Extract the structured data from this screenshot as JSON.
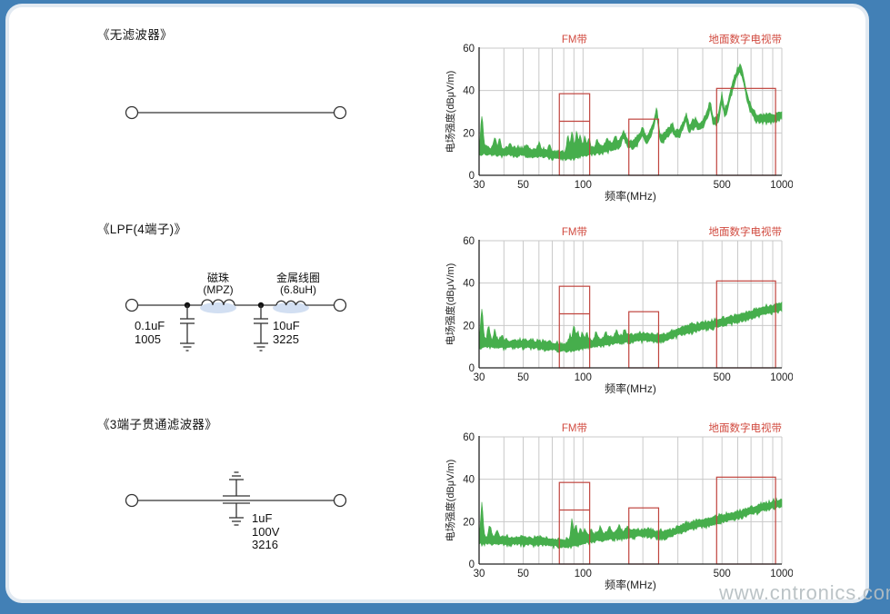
{
  "page": {
    "frame_color": "#4280b6",
    "card_color": "#ffffff",
    "watermark": "www.cntronics.com"
  },
  "sections": [
    {
      "title": "《无滤波器》",
      "circuit_type": "plain-wire",
      "labels": {}
    },
    {
      "title": "《LPF(4端子)》",
      "circuit_type": "lpf-4-terminal",
      "labels": {
        "bead_name": "磁珠",
        "bead_part": "(MPZ)",
        "coil_name": "金属线圈",
        "coil_part": "(6.8uH)",
        "cap1_value": "0.1uF",
        "cap1_size": "1005",
        "cap2_value": "10uF",
        "cap2_size": "3225"
      }
    },
    {
      "title": "《3端子贯通滤波器》",
      "circuit_type": "3-terminal-feedthrough",
      "labels": {
        "cap_value": "1uF",
        "cap_voltage": "100V",
        "cap_size": "3216"
      }
    }
  ],
  "chart_style": {
    "trace_color": "#46ae4c",
    "band_box_color": "#c0443e",
    "band_label_color": "#d14a3f",
    "grid_color": "#c9c9c9",
    "axis_color": "#222222",
    "text_color": "#222222"
  },
  "chart_data": [
    {
      "type": "area",
      "name": "no-filter-spectrum",
      "xlabel": "频率(MHz)",
      "ylabel": "电场强度(dBμV/m)",
      "xscale": "log",
      "xlim": [
        30,
        1000
      ],
      "ylim": [
        0,
        60
      ],
      "xticks": [
        30,
        50,
        100,
        500,
        1000
      ],
      "yticks": [
        0,
        20,
        40,
        60
      ],
      "grid_minor_x": [
        40,
        50,
        60,
        70,
        80,
        90,
        100,
        200,
        300,
        400,
        500,
        600,
        700,
        800,
        900,
        1000
      ],
      "grid_y": [
        20,
        40,
        60
      ],
      "band_label_left": "FM带",
      "band_label_right": "地面数字电视带",
      "bands": [
        {
          "name": "FM带",
          "f": [
            76,
            108
          ],
          "level_db": 38.5,
          "inner_level_db": 25.5
        },
        {
          "name": "",
          "f": [
            170,
            240
          ],
          "level_db": 26.5
        },
        {
          "name": "地面数字电视带",
          "f": [
            470,
            930
          ],
          "level_db": 41
        }
      ],
      "series_anchor_points": [
        [
          30,
          12
        ],
        [
          31.5,
          12.5
        ],
        [
          34,
          12
        ],
        [
          40,
          12
        ],
        [
          47,
          12
        ],
        [
          55,
          11.5
        ],
        [
          63,
          11.5
        ],
        [
          72,
          10.5
        ],
        [
          80,
          10
        ],
        [
          88,
          10.5
        ],
        [
          95,
          11
        ],
        [
          101,
          12
        ],
        [
          110,
          12.5
        ],
        [
          125,
          13
        ],
        [
          140,
          14.5
        ],
        [
          152,
          15.5
        ],
        [
          160,
          20.5
        ],
        [
          168,
          15.5
        ],
        [
          178,
          15.5
        ],
        [
          188,
          17
        ],
        [
          200,
          21.5
        ],
        [
          208,
          17.5
        ],
        [
          218,
          20
        ],
        [
          228,
          26
        ],
        [
          235,
          31.5
        ],
        [
          243,
          19
        ],
        [
          252,
          18.5
        ],
        [
          262,
          20
        ],
        [
          272,
          22
        ],
        [
          282,
          23.5
        ],
        [
          292,
          20
        ],
        [
          305,
          21
        ],
        [
          318,
          24
        ],
        [
          330,
          28.5
        ],
        [
          342,
          22.5
        ],
        [
          355,
          24.5
        ],
        [
          368,
          26
        ],
        [
          382,
          23.5
        ],
        [
          398,
          25
        ],
        [
          415,
          28
        ],
        [
          436,
          34
        ],
        [
          450,
          27
        ],
        [
          465,
          26
        ],
        [
          480,
          28
        ],
        [
          500,
          38
        ],
        [
          515,
          30
        ],
        [
          532,
          33
        ],
        [
          555,
          40
        ],
        [
          580,
          46
        ],
        [
          605,
          50.5
        ],
        [
          618,
          51
        ],
        [
          635,
          48.5
        ],
        [
          655,
          42
        ],
        [
          675,
          36
        ],
        [
          695,
          32.5
        ],
        [
          715,
          30.5
        ],
        [
          745,
          28
        ],
        [
          800,
          27.5
        ],
        [
          860,
          27.5
        ],
        [
          920,
          28
        ],
        [
          1000,
          29.5
        ]
      ],
      "spikes": [
        [
          31,
          15
        ],
        [
          36,
          5
        ],
        [
          38,
          4
        ],
        [
          43,
          2.5
        ],
        [
          52,
          2
        ],
        [
          60,
          2.5
        ],
        [
          68,
          2
        ],
        [
          84,
          8
        ],
        [
          88,
          8.5
        ],
        [
          93,
          9
        ],
        [
          97,
          6
        ],
        [
          102,
          5
        ],
        [
          107,
          4
        ],
        [
          118,
          3
        ],
        [
          132,
          3
        ],
        [
          145,
          2.5
        ]
      ]
    },
    {
      "type": "area",
      "name": "lpf-4-terminal-spectrum",
      "xlabel": "频率(MHz)",
      "ylabel": "电场强度(dBμV/m)",
      "xscale": "log",
      "xlim": [
        30,
        1000
      ],
      "ylim": [
        0,
        60
      ],
      "xticks": [
        30,
        50,
        100,
        500,
        1000
      ],
      "yticks": [
        0,
        20,
        40,
        60
      ],
      "grid_minor_x": [
        40,
        50,
        60,
        70,
        80,
        90,
        100,
        200,
        300,
        400,
        500,
        600,
        700,
        800,
        900,
        1000
      ],
      "grid_y": [
        20,
        40,
        60
      ],
      "band_label_left": "FM带",
      "band_label_right": "地面数字电视带",
      "bands": [
        {
          "name": "FM带",
          "f": [
            76,
            108
          ],
          "level_db": 38.5,
          "inner_level_db": 25.5
        },
        {
          "name": "",
          "f": [
            170,
            240
          ],
          "level_db": 26.5
        },
        {
          "name": "地面数字电视带",
          "f": [
            470,
            930
          ],
          "level_db": 41
        }
      ],
      "series_anchor_points": [
        [
          30,
          12
        ],
        [
          33,
          12.3
        ],
        [
          40,
          12
        ],
        [
          50,
          12.2
        ],
        [
          58,
          11.8
        ],
        [
          66,
          11.3
        ],
        [
          74,
          10.8
        ],
        [
          82,
          10.2
        ],
        [
          90,
          10.8
        ],
        [
          98,
          11.5
        ],
        [
          108,
          12.2
        ],
        [
          120,
          12.8
        ],
        [
          135,
          13.5
        ],
        [
          150,
          14
        ],
        [
          165,
          14.5
        ],
        [
          180,
          15
        ],
        [
          195,
          15.3
        ],
        [
          210,
          15.4
        ],
        [
          225,
          15
        ],
        [
          240,
          14.8
        ],
        [
          255,
          15
        ],
        [
          270,
          15.8
        ],
        [
          285,
          16.8
        ],
        [
          300,
          17.8
        ],
        [
          320,
          18.6
        ],
        [
          345,
          19.3
        ],
        [
          375,
          20
        ],
        [
          410,
          20.8
        ],
        [
          450,
          21.5
        ],
        [
          495,
          22.3
        ],
        [
          545,
          23.2
        ],
        [
          600,
          24.2
        ],
        [
          660,
          25.3
        ],
        [
          725,
          26.4
        ],
        [
          795,
          27.5
        ],
        [
          865,
          28.4
        ],
        [
          935,
          29
        ],
        [
          1000,
          29.8
        ]
      ],
      "spikes": [
        [
          31,
          14.5
        ],
        [
          33.5,
          7
        ],
        [
          36,
          4.5
        ],
        [
          39,
          2.5
        ],
        [
          86,
          4
        ],
        [
          90,
          8.5
        ],
        [
          94,
          5
        ],
        [
          99,
          4
        ],
        [
          104,
          3.5
        ],
        [
          116,
          2.5
        ],
        [
          130,
          2.5
        ],
        [
          147,
          2.5
        ],
        [
          162,
          2.5
        ]
      ]
    },
    {
      "type": "area",
      "name": "feedthrough-filter-spectrum",
      "xlabel": "频率(MHz)",
      "ylabel": "电场强度(dBμV/m)",
      "xscale": "log",
      "xlim": [
        30,
        1000
      ],
      "ylim": [
        0,
        60
      ],
      "xticks": [
        30,
        50,
        100,
        500,
        1000
      ],
      "yticks": [
        0,
        20,
        40,
        60
      ],
      "grid_minor_x": [
        40,
        50,
        60,
        70,
        80,
        90,
        100,
        200,
        300,
        400,
        500,
        600,
        700,
        800,
        900,
        1000
      ],
      "grid_y": [
        20,
        40,
        60
      ],
      "band_label_left": "FM带",
      "band_label_right": "地面数字电视带",
      "bands": [
        {
          "name": "FM带",
          "f": [
            76,
            108
          ],
          "level_db": 38.5,
          "inner_level_db": 25.5
        },
        {
          "name": "",
          "f": [
            170,
            240
          ],
          "level_db": 26.5
        },
        {
          "name": "地面数字电视带",
          "f": [
            470,
            930
          ],
          "level_db": 41
        }
      ],
      "series_anchor_points": [
        [
          30,
          12
        ],
        [
          34,
          12.2
        ],
        [
          42,
          11.8
        ],
        [
          50,
          11.8
        ],
        [
          58,
          11.5
        ],
        [
          66,
          11.2
        ],
        [
          75,
          10.8
        ],
        [
          84,
          10.4
        ],
        [
          92,
          11
        ],
        [
          100,
          12
        ],
        [
          112,
          13
        ],
        [
          126,
          13.8
        ],
        [
          142,
          14.2
        ],
        [
          158,
          14.6
        ],
        [
          175,
          15
        ],
        [
          192,
          15.4
        ],
        [
          208,
          15.5
        ],
        [
          225,
          15.1
        ],
        [
          242,
          14.6
        ],
        [
          258,
          14.5
        ],
        [
          275,
          15.3
        ],
        [
          292,
          16.4
        ],
        [
          310,
          17.4
        ],
        [
          330,
          18.2
        ],
        [
          355,
          19
        ],
        [
          385,
          19.8
        ],
        [
          420,
          20.6
        ],
        [
          460,
          21.4
        ],
        [
          505,
          22.2
        ],
        [
          555,
          23.1
        ],
        [
          610,
          24.2
        ],
        [
          670,
          25.4
        ],
        [
          735,
          26.5
        ],
        [
          805,
          27.6
        ],
        [
          875,
          28.5
        ],
        [
          1000,
          29.8
        ]
      ],
      "spikes": [
        [
          31,
          15.5
        ],
        [
          34,
          5
        ],
        [
          37,
          3.5
        ],
        [
          88,
          9.5
        ],
        [
          92,
          6
        ],
        [
          97,
          4.5
        ],
        [
          102,
          4
        ],
        [
          110,
          3
        ],
        [
          122,
          3
        ],
        [
          136,
          3
        ],
        [
          152,
          3
        ],
        [
          168,
          2.5
        ]
      ]
    }
  ]
}
